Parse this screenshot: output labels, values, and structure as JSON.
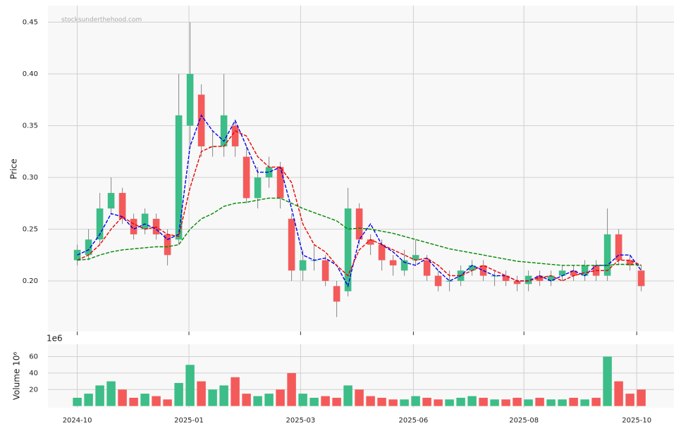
{
  "chart_data": {
    "type": "candlestick",
    "ylabel": "Price",
    "watermark": "stocksunderthehood.com",
    "up_color": "#3dbd87",
    "down_color": "#f45a5a",
    "grid": true,
    "open": [
      0.22,
      0.225,
      0.24,
      0.27,
      0.285,
      0.26,
      0.25,
      0.26,
      0.245,
      0.24,
      0.35,
      0.38,
      0.33,
      0.33,
      0.35,
      0.32,
      0.28,
      0.3,
      0.31,
      0.26,
      0.21,
      0.22,
      0.22,
      0.195,
      0.19,
      0.27,
      0.24,
      0.235,
      0.22,
      0.21,
      0.22,
      0.22,
      0.205,
      0.2,
      0.2,
      0.21,
      0.215,
      0.205,
      0.205,
      0.2,
      0.197,
      0.205,
      0.2,
      0.205,
      0.21,
      0.205,
      0.215,
      0.205,
      0.245,
      0.22,
      0.21
    ],
    "high": [
      0.235,
      0.25,
      0.285,
      0.3,
      0.29,
      0.265,
      0.27,
      0.265,
      0.25,
      0.4,
      0.45,
      0.39,
      0.345,
      0.4,
      0.355,
      0.33,
      0.31,
      0.32,
      0.315,
      0.265,
      0.23,
      0.235,
      0.225,
      0.2,
      0.29,
      0.275,
      0.245,
      0.24,
      0.225,
      0.23,
      0.24,
      0.225,
      0.21,
      0.21,
      0.215,
      0.22,
      0.22,
      0.21,
      0.21,
      0.205,
      0.21,
      0.21,
      0.21,
      0.215,
      0.215,
      0.22,
      0.22,
      0.27,
      0.25,
      0.225,
      0.215
    ],
    "low": [
      0.215,
      0.22,
      0.235,
      0.265,
      0.255,
      0.24,
      0.245,
      0.24,
      0.215,
      0.235,
      0.33,
      0.32,
      0.32,
      0.32,
      0.32,
      0.275,
      0.27,
      0.29,
      0.27,
      0.2,
      0.2,
      0.21,
      0.195,
      0.165,
      0.185,
      0.235,
      0.225,
      0.21,
      0.205,
      0.205,
      0.215,
      0.2,
      0.19,
      0.19,
      0.195,
      0.205,
      0.2,
      0.195,
      0.195,
      0.19,
      0.19,
      0.195,
      0.195,
      0.2,
      0.2,
      0.2,
      0.2,
      0.2,
      0.215,
      0.21,
      0.19
    ],
    "close": [
      0.23,
      0.24,
      0.27,
      0.285,
      0.26,
      0.245,
      0.265,
      0.245,
      0.225,
      0.36,
      0.4,
      0.33,
      0.33,
      0.36,
      0.33,
      0.28,
      0.3,
      0.31,
      0.28,
      0.21,
      0.22,
      0.22,
      0.2,
      0.18,
      0.27,
      0.24,
      0.235,
      0.22,
      0.215,
      0.22,
      0.225,
      0.205,
      0.195,
      0.2,
      0.21,
      0.215,
      0.205,
      0.205,
      0.2,
      0.197,
      0.205,
      0.2,
      0.205,
      0.21,
      0.205,
      0.215,
      0.205,
      0.245,
      0.22,
      0.215,
      0.195
    ],
    "lines": [
      {
        "color": "#0000ee",
        "values": [
          0.225,
          0.23,
          0.245,
          0.265,
          0.262,
          0.25,
          0.255,
          0.25,
          0.24,
          0.245,
          0.33,
          0.36,
          0.345,
          0.335,
          0.355,
          0.33,
          0.305,
          0.305,
          0.31,
          0.27,
          0.225,
          0.22,
          0.222,
          0.215,
          0.195,
          0.24,
          0.255,
          0.235,
          0.228,
          0.218,
          0.215,
          0.222,
          0.21,
          0.2,
          0.205,
          0.215,
          0.21,
          0.205,
          0.205,
          0.2,
          0.2,
          0.205,
          0.2,
          0.205,
          0.21,
          0.205,
          0.215,
          0.215,
          0.225,
          0.225,
          0.21
        ]
      },
      {
        "color": "#ee0000",
        "values": [
          0.22,
          0.225,
          0.235,
          0.25,
          0.262,
          0.255,
          0.25,
          0.252,
          0.245,
          0.243,
          0.29,
          0.325,
          0.33,
          0.33,
          0.345,
          0.34,
          0.32,
          0.31,
          0.31,
          0.295,
          0.255,
          0.235,
          0.228,
          0.215,
          0.205,
          0.23,
          0.24,
          0.235,
          0.23,
          0.225,
          0.22,
          0.222,
          0.215,
          0.205,
          0.205,
          0.21,
          0.215,
          0.21,
          0.205,
          0.2,
          0.2,
          0.203,
          0.205,
          0.2,
          0.205,
          0.208,
          0.21,
          0.21,
          0.22,
          0.22,
          0.215
        ]
      },
      {
        "color": "#008800",
        "values": [
          0.22,
          0.221,
          0.225,
          0.228,
          0.23,
          0.231,
          0.232,
          0.233,
          0.233,
          0.235,
          0.25,
          0.26,
          0.265,
          0.272,
          0.275,
          0.276,
          0.278,
          0.28,
          0.28,
          0.275,
          0.27,
          0.266,
          0.262,
          0.258,
          0.25,
          0.251,
          0.25,
          0.248,
          0.246,
          0.243,
          0.24,
          0.237,
          0.234,
          0.231,
          0.229,
          0.227,
          0.225,
          0.223,
          0.221,
          0.219,
          0.218,
          0.217,
          0.216,
          0.215,
          0.215,
          0.215,
          0.215,
          0.215,
          0.216,
          0.216,
          0.215
        ]
      }
    ],
    "xlim": [
      -2.6,
      52.9
    ],
    "xticks": [
      {
        "value": 0,
        "label": "2024-10"
      },
      {
        "value": 9.9,
        "label": "2025-01"
      },
      {
        "value": 19.8,
        "label": "2025-03"
      },
      {
        "value": 29.8,
        "label": "2025-06"
      },
      {
        "value": 39.6,
        "label": "2025-08"
      },
      {
        "value": 49.6,
        "label": "2025-10"
      }
    ],
    "ylim": [
      0.151,
      0.466
    ],
    "yticks": [
      {
        "value": 0.2,
        "label": "0.20"
      },
      0.25,
      {
        "value": 0.3,
        "label": "0.30"
      },
      0.35,
      {
        "value": 0.4,
        "label": "0.40"
      },
      0.45
    ],
    "volume": {
      "ylabel": "Volume  10⁶",
      "offset_label": "1e6",
      "values": [
        10,
        15,
        25,
        30,
        20,
        10,
        15,
        12,
        8,
        28,
        50,
        30,
        20,
        25,
        35,
        15,
        12,
        15,
        20,
        40,
        15,
        10,
        12,
        10,
        25,
        20,
        12,
        10,
        8,
        8,
        12,
        10,
        8,
        8,
        10,
        12,
        10,
        8,
        8,
        10,
        8,
        10,
        8,
        8,
        10,
        8,
        10,
        60,
        30,
        15,
        20
      ],
      "ylim": [
        -2,
        75
      ],
      "yticks": [
        20,
        40,
        60
      ]
    }
  }
}
